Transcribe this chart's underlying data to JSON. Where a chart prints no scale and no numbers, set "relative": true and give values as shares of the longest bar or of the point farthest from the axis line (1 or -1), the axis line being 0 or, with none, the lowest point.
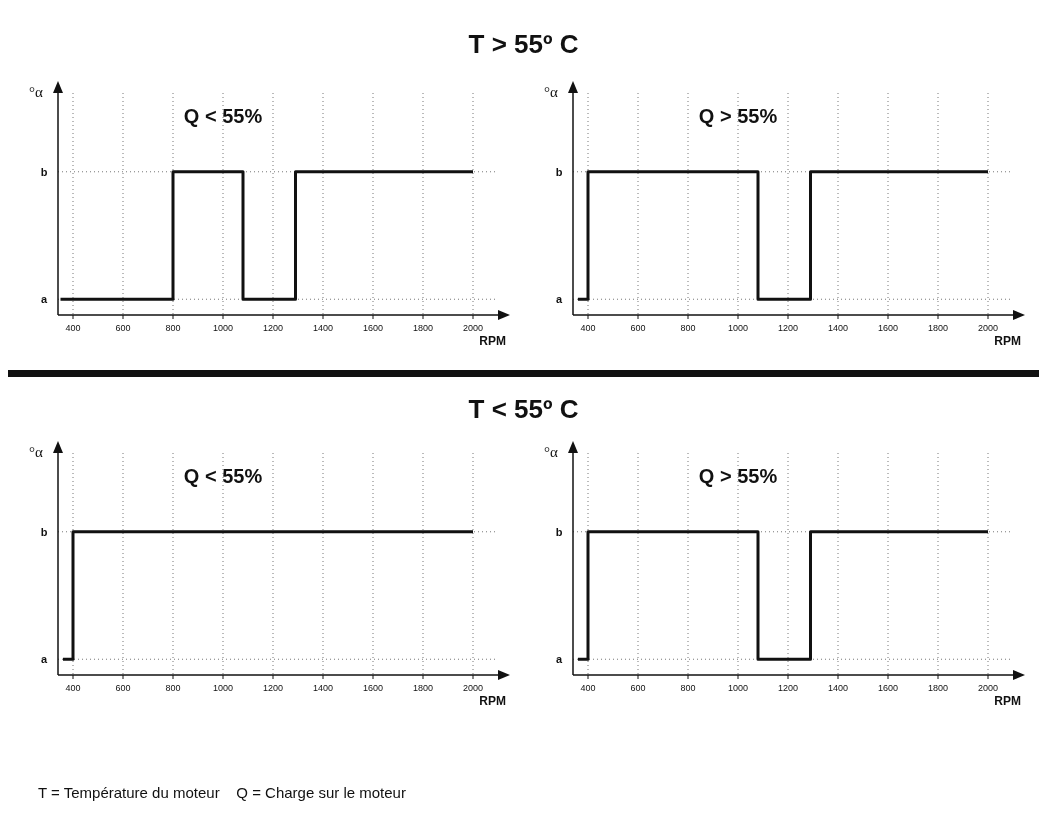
{
  "chart_data": [
    {
      "type": "step",
      "title": "Q < 55%",
      "xlabel": "RPM",
      "ylabel": "°α",
      "annotations": [
        "T > 55º C",
        "a",
        "b"
      ],
      "relative": true,
      "x": [
        350,
        800,
        1080,
        1290,
        2000
      ],
      "values": [
        0.11,
        1,
        0.11,
        1,
        1
      ],
      "color": "#111111",
      "xlim": [
        340,
        2100
      ],
      "xticks": [
        400,
        600,
        800,
        1000,
        1200,
        1400,
        1600,
        1800,
        2000
      ],
      "grid": true
    },
    {
      "type": "step",
      "title": "Q > 55%",
      "xlabel": "RPM",
      "ylabel": "°α",
      "annotations": [
        "a",
        "b"
      ],
      "relative": true,
      "x": [
        360,
        400,
        1080,
        1290,
        2000
      ],
      "values": [
        0.11,
        1,
        0.11,
        1,
        1
      ],
      "color": "#111111",
      "xlim": [
        340,
        2100
      ],
      "xticks": [
        400,
        600,
        800,
        1000,
        1200,
        1400,
        1600,
        1800,
        2000
      ],
      "grid": true
    },
    {
      "type": "step",
      "title": "Q < 55%",
      "xlabel": "RPM",
      "ylabel": "°α",
      "annotations": [
        "T < 55º C",
        "a",
        "b",
        "T = Température du moteur    Q = Charge sur le moteur"
      ],
      "relative": true,
      "x": [
        360,
        400,
        800,
        1200,
        1600,
        2000
      ],
      "values": [
        0.11,
        1,
        1,
        1,
        1,
        1
      ],
      "color": "#111111",
      "xlim": [
        340,
        2100
      ],
      "xticks": [
        400,
        600,
        800,
        1000,
        1200,
        1400,
        1600,
        1800,
        2000
      ],
      "grid": true
    },
    {
      "type": "step",
      "title": "Q > 55%",
      "xlabel": "RPM",
      "ylabel": "°α",
      "annotations": [
        "a",
        "b"
      ],
      "relative": true,
      "x": [
        360,
        400,
        1080,
        1290,
        2000
      ],
      "values": [
        0.11,
        1,
        0.11,
        1,
        1
      ],
      "color": "#111111",
      "xlim": [
        340,
        2100
      ],
      "xticks": [
        400,
        600,
        800,
        1000,
        1200,
        1400,
        1600,
        1800,
        2000
      ],
      "grid": true
    }
  ]
}
